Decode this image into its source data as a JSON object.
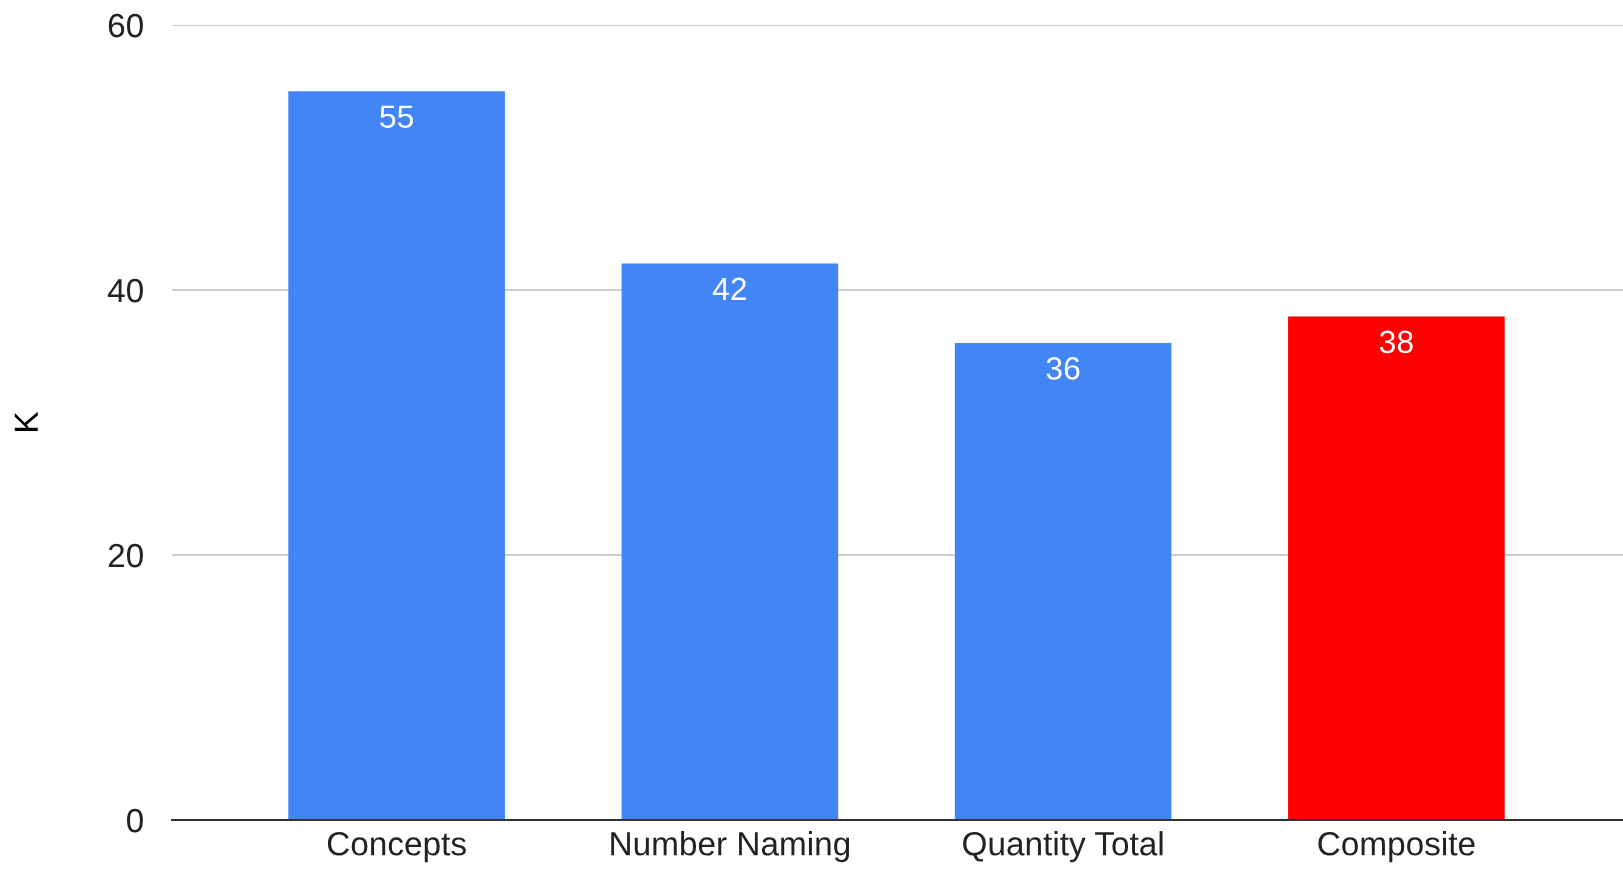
{
  "chart_data": {
    "type": "bar",
    "ylabel": "K",
    "categories": [
      "Concepts",
      "Number Naming",
      "Quantity Total",
      "Composite"
    ],
    "values": [
      55,
      42,
      36,
      38
    ],
    "colors": [
      "#4285f4",
      "#4285f4",
      "#4285f4",
      "#ff0000"
    ],
    "ylim": [
      0,
      60
    ],
    "yticks": [
      0,
      20,
      40,
      60
    ],
    "grid": "y",
    "data_labels": true,
    "legend": false
  }
}
